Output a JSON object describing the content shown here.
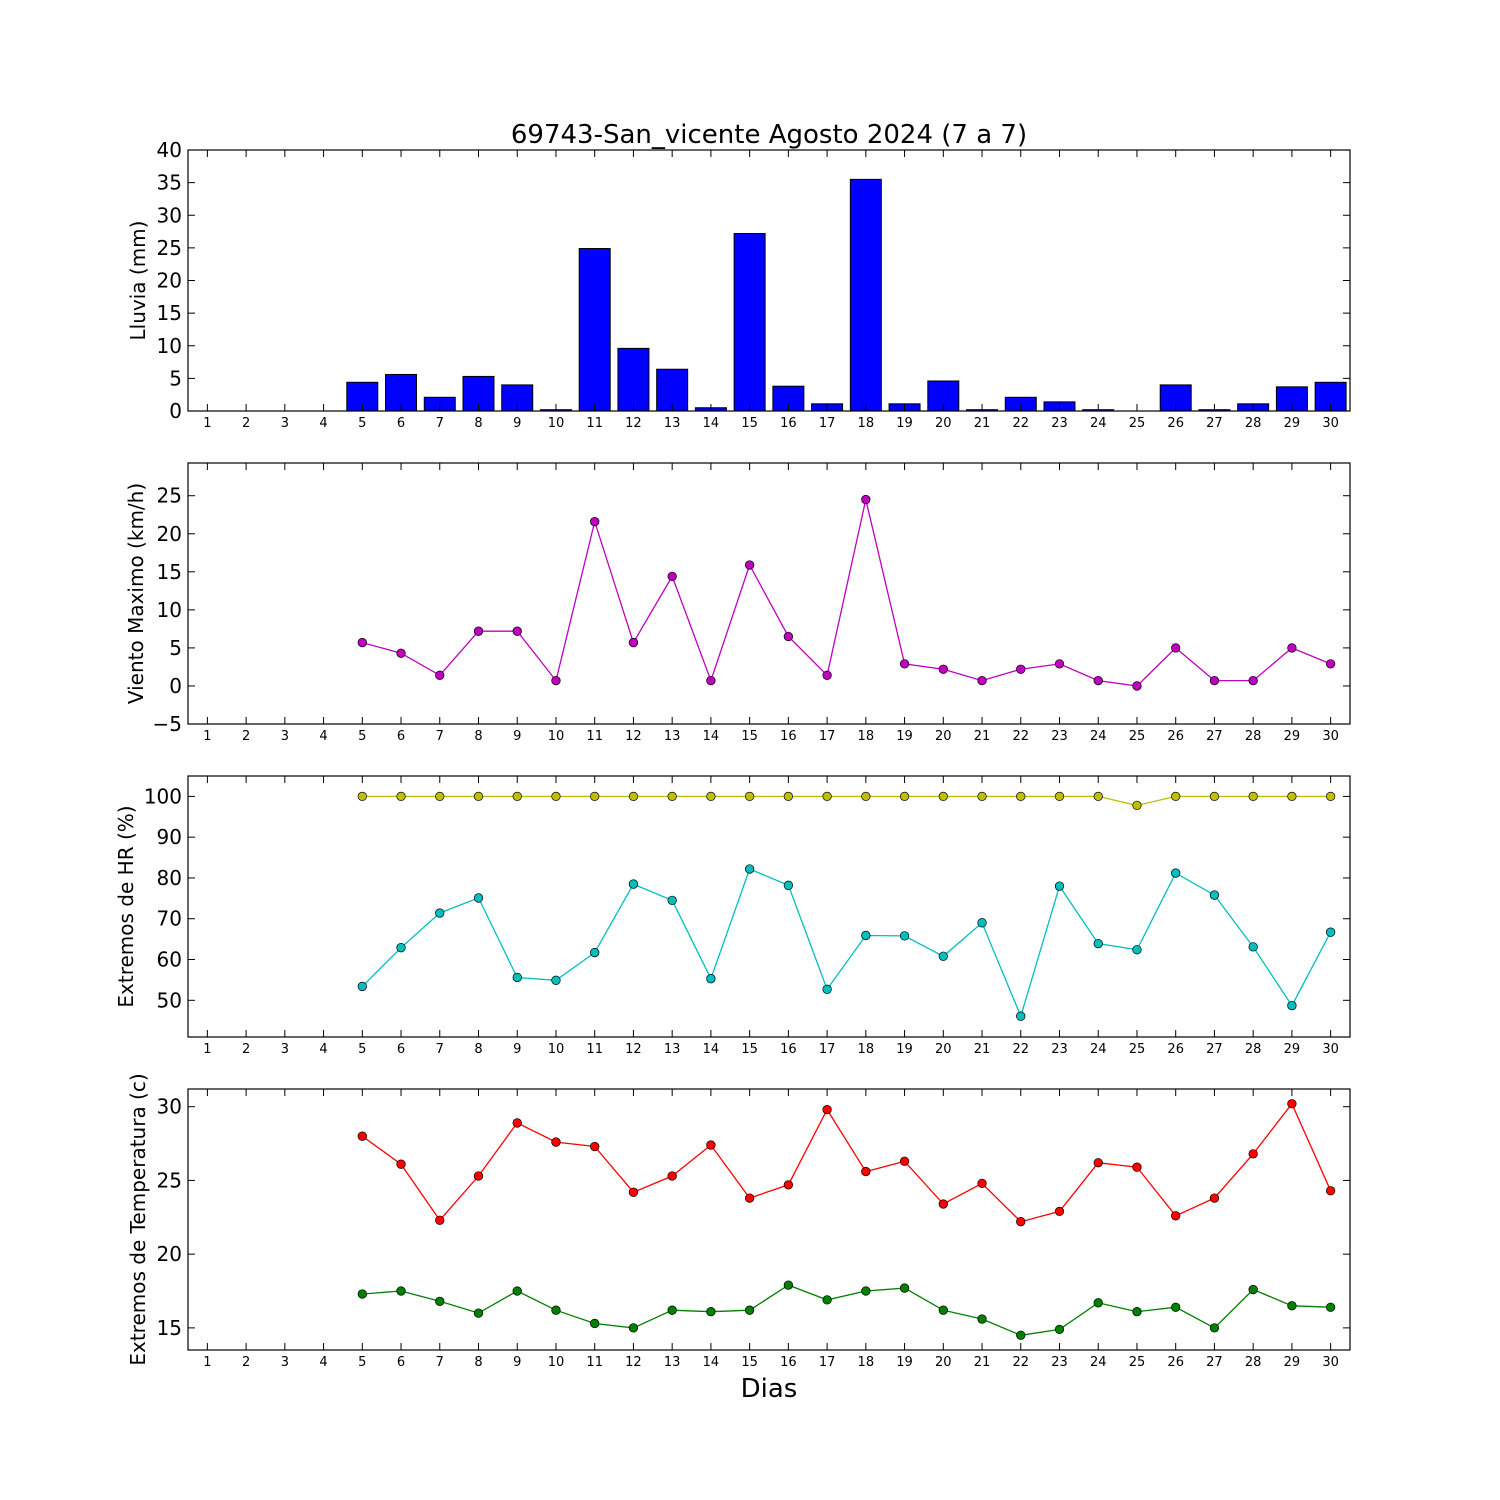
{
  "figure": {
    "title": "69743-San_vicente Agosto 2024  (7 a 7)",
    "xlabel": "Dias"
  },
  "chart_data": [
    {
      "type": "bar",
      "ylabel": "Lluvia (mm)",
      "ylim": [
        0,
        40
      ],
      "yticks": [
        0,
        5,
        10,
        15,
        20,
        25,
        30,
        35,
        40
      ],
      "categories": [
        "1",
        "2",
        "3",
        "4",
        "5",
        "6",
        "7",
        "8",
        "9",
        "10",
        "11",
        "12",
        "13",
        "14",
        "15",
        "16",
        "17",
        "18",
        "19",
        "20",
        "21",
        "22",
        "23",
        "24",
        "25",
        "26",
        "27",
        "28",
        "29",
        "30"
      ],
      "x": [
        5,
        6,
        7,
        8,
        9,
        10,
        11,
        12,
        13,
        14,
        15,
        16,
        17,
        18,
        19,
        20,
        21,
        22,
        23,
        24,
        25,
        26,
        27,
        28,
        29,
        30
      ],
      "series": [
        {
          "color": "#0000ff",
          "values": [
            4.4,
            5.6,
            2.1,
            5.3,
            4.0,
            0.2,
            24.9,
            9.6,
            6.4,
            0.5,
            27.2,
            3.8,
            1.1,
            35.5,
            1.1,
            4.6,
            0.2,
            2.1,
            1.4,
            0.2,
            0.0,
            4.0,
            0.2,
            1.1,
            3.7,
            4.4
          ]
        }
      ],
      "grid": false
    },
    {
      "type": "line",
      "ylabel": "Viento Maximo (km/h)",
      "ylim": [
        -5,
        29.3
      ],
      "yticks": [
        -5,
        0,
        5,
        10,
        15,
        20,
        25
      ],
      "categories": [
        "1",
        "2",
        "3",
        "4",
        "5",
        "6",
        "7",
        "8",
        "9",
        "10",
        "11",
        "12",
        "13",
        "14",
        "15",
        "16",
        "17",
        "18",
        "19",
        "20",
        "21",
        "22",
        "23",
        "24",
        "25",
        "26",
        "27",
        "28",
        "29",
        "30"
      ],
      "x": [
        5,
        6,
        7,
        8,
        9,
        10,
        11,
        12,
        13,
        14,
        15,
        16,
        17,
        18,
        19,
        20,
        21,
        22,
        23,
        24,
        25,
        26,
        27,
        28,
        29,
        30
      ],
      "series": [
        {
          "color": "#bf00bf",
          "values": [
            5.7,
            4.3,
            1.4,
            7.2,
            7.2,
            0.7,
            21.6,
            5.7,
            14.4,
            0.7,
            15.9,
            6.5,
            1.4,
            24.5,
            2.9,
            2.2,
            0.7,
            2.2,
            2.9,
            0.7,
            0.0,
            5.0,
            0.7,
            0.7,
            5.0,
            2.9
          ]
        }
      ],
      "grid": false
    },
    {
      "type": "line",
      "ylabel": "Extremos de HR (%)",
      "ylim": [
        41,
        105
      ],
      "yticks": [
        50,
        60,
        70,
        80,
        90,
        100
      ],
      "categories": [
        "1",
        "2",
        "3",
        "4",
        "5",
        "6",
        "7",
        "8",
        "9",
        "10",
        "11",
        "12",
        "13",
        "14",
        "15",
        "16",
        "17",
        "18",
        "19",
        "20",
        "21",
        "22",
        "23",
        "24",
        "25",
        "26",
        "27",
        "28",
        "29",
        "30"
      ],
      "x": [
        5,
        6,
        7,
        8,
        9,
        10,
        11,
        12,
        13,
        14,
        15,
        16,
        17,
        18,
        19,
        20,
        21,
        22,
        23,
        24,
        25,
        26,
        27,
        28,
        29,
        30
      ],
      "series": [
        {
          "color": "#bfbf00",
          "values": [
            100,
            100,
            100,
            100,
            100,
            100,
            100,
            100,
            100,
            100,
            100,
            100,
            100,
            100,
            100,
            100,
            100,
            100,
            100,
            100,
            97.8,
            100,
            100,
            100,
            100,
            100
          ]
        },
        {
          "color": "#00bfbf",
          "values": [
            53.4,
            62.9,
            71.4,
            75.1,
            55.6,
            54.9,
            61.7,
            78.5,
            74.5,
            55.3,
            82.2,
            78.2,
            52.7,
            65.9,
            65.8,
            60.8,
            69.0,
            46.1,
            78.0,
            63.9,
            62.4,
            81.2,
            75.8,
            63.1,
            48.7,
            66.7
          ]
        }
      ],
      "grid": false
    },
    {
      "type": "line",
      "ylabel": "Extremos de Temperatura (c)",
      "ylim": [
        13.5,
        31.2
      ],
      "yticks": [
        15,
        20,
        25,
        30
      ],
      "categories": [
        "1",
        "2",
        "3",
        "4",
        "5",
        "6",
        "7",
        "8",
        "9",
        "10",
        "11",
        "12",
        "13",
        "14",
        "15",
        "16",
        "17",
        "18",
        "19",
        "20",
        "21",
        "22",
        "23",
        "24",
        "25",
        "26",
        "27",
        "28",
        "29",
        "30"
      ],
      "x": [
        5,
        6,
        7,
        8,
        9,
        10,
        11,
        12,
        13,
        14,
        15,
        16,
        17,
        18,
        19,
        20,
        21,
        22,
        23,
        24,
        25,
        26,
        27,
        28,
        29,
        30
      ],
      "series": [
        {
          "color": "#ff0000",
          "values": [
            28.0,
            26.1,
            22.3,
            25.3,
            28.9,
            27.6,
            27.3,
            24.2,
            25.3,
            27.4,
            23.8,
            24.7,
            29.8,
            25.6,
            26.3,
            23.4,
            24.8,
            22.2,
            22.9,
            26.2,
            25.9,
            22.6,
            23.8,
            26.8,
            30.2,
            24.3
          ]
        },
        {
          "color": "#008000",
          "values": [
            17.3,
            17.5,
            16.8,
            16.0,
            17.5,
            16.2,
            15.3,
            15.0,
            16.2,
            16.1,
            16.2,
            17.9,
            16.9,
            17.5,
            17.7,
            16.2,
            15.6,
            14.5,
            14.9,
            16.7,
            16.1,
            16.4,
            15.0,
            17.6,
            16.5,
            16.4
          ]
        }
      ],
      "grid": false
    }
  ]
}
